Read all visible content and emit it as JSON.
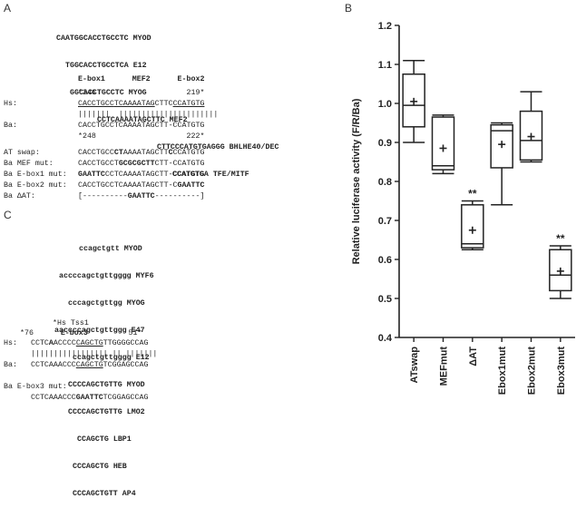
{
  "panelA": {
    "letter": "A",
    "motifs": [
      {
        "seq": "CAATGGCACCTGCCTC",
        "name": "MYOD"
      },
      {
        "seq": "TGGCACCTGCCTCA",
        "name": "E12"
      },
      {
        "seq": "GGCACCTGCCTC",
        "name": "MYOG"
      },
      {
        "seq": "CCTCAAAATAGCTTC",
        "name": "MEF2"
      },
      {
        "seq": "CTTCCCATGTGAGGG",
        "name": "BHLHE40/DEC"
      },
      {
        "seq": "CCATGTGA",
        "name": "TFE/MITF"
      }
    ],
    "headers": {
      "ebox1": "E-box1",
      "mef2": "MEF2",
      "ebox2": "E-box2"
    },
    "hs_num_left": "*246",
    "hs_num_right": "219*",
    "hs_label": "Hs:",
    "hs_seq_a": "CACCTGCC",
    "hs_seq_b": "TCAAAATAG",
    "hs_seq_c": "CTTC",
    "hs_seq_d": "CCATGTG",
    "bars": "|||||||  ||||||||||||||||||||||",
    "ba_label": "Ba:",
    "ba_seq": "CACCTGCCTCAAAATAGCTT-CCATGTG",
    "ba_num_left": "*248",
    "ba_num_right": "222*",
    "mutants": [
      {
        "label": "AT swap:",
        "pre": "CACCTGCC",
        "bold": "CT",
        "post": "AAAATAGCTT",
        "bold2": "C",
        "post2": "CCATGTG"
      },
      {
        "label": "Ba MEF mut:",
        "pre": "CACCTGCCT",
        "bold": "GCGCGCTT",
        "post": "CTT-CCATGTG",
        "bold2": "",
        "post2": ""
      },
      {
        "label": "Ba E-box1 mut:",
        "pre": "",
        "bold": "GAATTC",
        "post": "CCTCAAAATAGCTT-CCATGTG",
        "bold2": "",
        "post2": ""
      },
      {
        "label": "Ba E-box2 mut:",
        "pre": "CACCTGCCTCAAAATAGCTT-C",
        "bold": "GAATTC",
        "post": "",
        "bold2": "",
        "post2": ""
      },
      {
        "label": "Ba ΔAT:",
        "pre": "[----------",
        "bold": "GAATTC",
        "post": "----------]",
        "bold2": "",
        "post2": ""
      }
    ]
  },
  "panelC": {
    "letter": "C",
    "motifs": [
      {
        "seq": "ccagctgtt",
        "name": "MYOD"
      },
      {
        "seq": "accccagctgttgggg",
        "name": "MYF6"
      },
      {
        "seq": "cccagctgttgg",
        "name": "MYOG"
      },
      {
        "seq": "aaccccagctgttggg",
        "name": "E47"
      },
      {
        "seq": "ccagctgttgggg",
        "name": "E12"
      },
      {
        "seq": "CCCCAGCTGTTG",
        "name": "MYOD"
      },
      {
        "seq": "CCCCAGCTGTTG",
        "name": "LMO2"
      },
      {
        "seq": "CCAGCTG",
        "name": "LBP1"
      },
      {
        "seq": "CCCAGCTG",
        "name": "HEB"
      },
      {
        "seq": "CCCAGCTGTT",
        "name": "AP4"
      }
    ],
    "tss": "*Hs Tss1",
    "num_left": "*76",
    "ebox3": "E-box3",
    "num_right": "51*",
    "hs_label": "Hs:",
    "hs_seq_a": "CCTC",
    "hs_seq_b": "A",
    "hs_seq_c": "ACCCC",
    "hs_seq_d": "CAGCTG",
    "hs_seq_e": "TTGGGGCCAG",
    "bars": "||||||||||||||||| || |||||||",
    "ba_label": "Ba:",
    "ba_seq_a": "CCTCAAACCC",
    "ba_seq_b": "CAGCTG",
    "ba_seq_c": "TCGGAGCCAG",
    "mut_label": "Ba E-box3 mut:",
    "mut_pre": "CCTCAAACCC",
    "mut_bold": "GAATTC",
    "mut_post": "TCGGAGCCAG"
  },
  "chart_data": {
    "type": "box",
    "panel_letter": "B",
    "ylabel": "Relative luciferase activity (F/R/Ba)",
    "ylim": [
      0.4,
      1.2
    ],
    "yticks": [
      "0.4",
      "0.5",
      "0.6",
      "0.7",
      "0.8",
      "0.9",
      "1.0",
      "1.1",
      "1.2"
    ],
    "categories": [
      "ATswap",
      "MEFmut",
      "ΔAT",
      "Ebox1mut",
      "Ebox2mut",
      "Ebox3mut"
    ],
    "boxes": [
      {
        "min": 0.9,
        "q1": 0.94,
        "median": 0.995,
        "q3": 1.075,
        "max": 1.11,
        "mean": 1.005,
        "sig": ""
      },
      {
        "min": 0.82,
        "q1": 0.83,
        "median": 0.84,
        "q3": 0.965,
        "max": 0.97,
        "mean": 0.885,
        "sig": ""
      },
      {
        "min": 0.625,
        "q1": 0.63,
        "median": 0.64,
        "q3": 0.74,
        "max": 0.75,
        "mean": 0.675,
        "sig": "**"
      },
      {
        "min": 0.74,
        "q1": 0.835,
        "median": 0.93,
        "q3": 0.945,
        "max": 0.95,
        "mean": 0.895,
        "sig": ""
      },
      {
        "min": 0.85,
        "q1": 0.855,
        "median": 0.905,
        "q3": 0.98,
        "max": 1.03,
        "mean": 0.915,
        "sig": ""
      },
      {
        "min": 0.5,
        "q1": 0.52,
        "median": 0.56,
        "q3": 0.625,
        "max": 0.635,
        "mean": 0.57,
        "sig": "**"
      }
    ]
  }
}
